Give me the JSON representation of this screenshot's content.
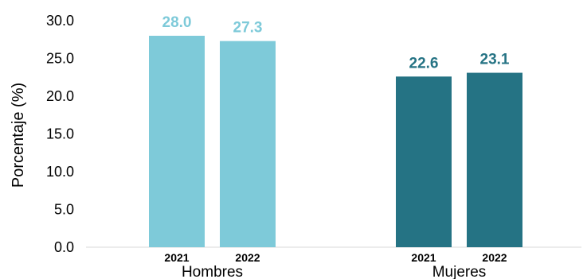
{
  "chart_data": {
    "type": "bar",
    "ylabel": "Porcentaje (%)",
    "ylim": [
      0,
      30
    ],
    "yticks": [
      "0.0",
      "5.0",
      "10.0",
      "15.0",
      "20.0",
      "25.0",
      "30.0"
    ],
    "grid": false,
    "groups": [
      {
        "label": "Hombres",
        "color": "#7ECAD9",
        "bars": [
          {
            "category": "2021",
            "value": 28.0,
            "label": "28.0"
          },
          {
            "category": "2022",
            "value": 27.3,
            "label": "27.3"
          }
        ]
      },
      {
        "label": "Mujeres",
        "color": "#257384",
        "bars": [
          {
            "category": "2021",
            "value": 22.6,
            "label": "22.6"
          },
          {
            "category": "2022",
            "value": 23.1,
            "label": "23.1"
          }
        ]
      }
    ]
  }
}
